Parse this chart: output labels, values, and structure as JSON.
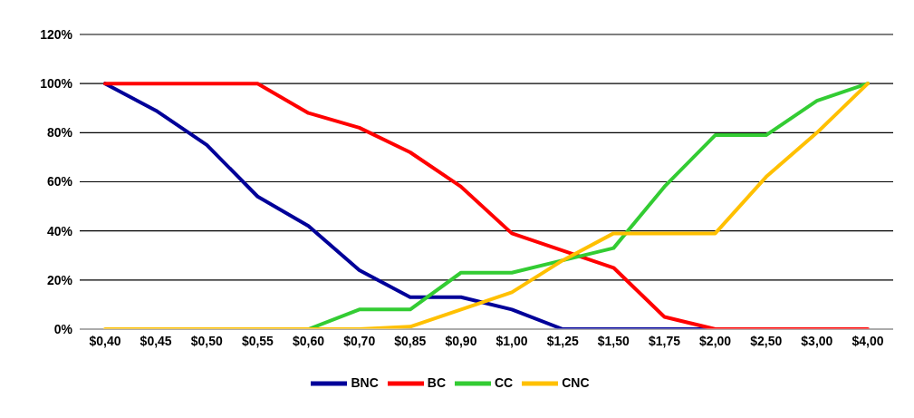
{
  "chart_data": {
    "type": "line",
    "categories": [
      "$0,40",
      "$0,45",
      "$0,50",
      "$0,55",
      "$0,60",
      "$0,70",
      "$0,85",
      "$0,90",
      "$1,00",
      "$1,25",
      "$1,50",
      "$1,75",
      "$2,00",
      "$2,50",
      "$3,00",
      "$4,00"
    ],
    "series": [
      {
        "name": "BNC",
        "color": "#000099",
        "values": [
          100,
          89,
          75,
          54,
          42,
          24,
          13,
          13,
          8,
          0,
          0,
          0,
          0,
          null,
          null,
          null
        ]
      },
      {
        "name": "BC",
        "color": "#ff0000",
        "values": [
          100,
          100,
          100,
          100,
          88,
          82,
          72,
          58,
          39,
          32,
          25,
          5,
          0,
          0,
          0,
          0
        ]
      },
      {
        "name": "CC",
        "color": "#33cc33",
        "values": [
          null,
          null,
          null,
          null,
          0,
          8,
          8,
          23,
          23,
          28,
          33,
          58,
          79,
          79,
          93,
          100
        ]
      },
      {
        "name": "CNC",
        "color": "#ffc000",
        "values": [
          0,
          0,
          0,
          0,
          0,
          0,
          1,
          8,
          15,
          28,
          39,
          39,
          39,
          62,
          80,
          100
        ]
      }
    ],
    "ylim": [
      0,
      120
    ],
    "yticks": [
      {
        "value": 0,
        "label": "0%"
      },
      {
        "value": 20,
        "label": "20%"
      },
      {
        "value": 40,
        "label": "40%"
      },
      {
        "value": 60,
        "label": "60%"
      },
      {
        "value": 80,
        "label": "80%"
      },
      {
        "value": 100,
        "label": "100%"
      },
      {
        "value": 120,
        "label": "120%"
      }
    ],
    "grid": "y",
    "legend": "bottom",
    "marker": "none",
    "line_style": "solid"
  }
}
